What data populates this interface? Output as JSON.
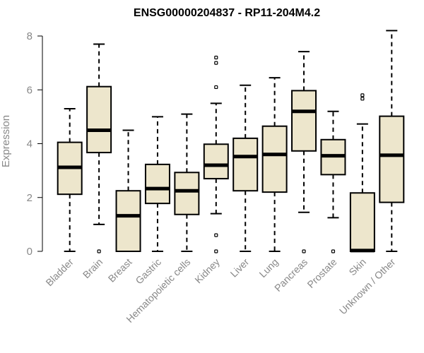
{
  "chart_data": {
    "type": "boxplot",
    "title": "ENSG00000204837 - RP11-204M4.2",
    "xlabel": "",
    "ylabel": "Expression",
    "ylim": [
      0,
      8.2
    ],
    "yticks": [
      0,
      2,
      4,
      6,
      8
    ],
    "grid": false,
    "colors": {
      "box_fill": "#ede6cc",
      "stroke": "#000000",
      "axis_text": "#888888"
    },
    "categories": [
      "Bladder",
      "Brain",
      "Breast",
      "Gastric",
      "Hematopoietic cells",
      "Kidney",
      "Liver",
      "Lung",
      "Pancreas",
      "Prostate",
      "Skin",
      "Unknown / Other"
    ],
    "boxes": [
      {
        "category": "Bladder",
        "whisker_low": 0,
        "q1": 2.12,
        "median": 3.12,
        "q3": 4.05,
        "whisker_high": 5.3,
        "outliers": []
      },
      {
        "category": "Brain",
        "whisker_low": 1.0,
        "q1": 3.67,
        "median": 4.5,
        "q3": 6.12,
        "whisker_high": 7.7,
        "outliers": [
          0
        ]
      },
      {
        "category": "Breast",
        "whisker_low": 0,
        "q1": 0,
        "median": 1.32,
        "q3": 2.25,
        "whisker_high": 4.5,
        "outliers": []
      },
      {
        "category": "Gastric",
        "whisker_low": 0,
        "q1": 1.78,
        "median": 2.33,
        "q3": 3.23,
        "whisker_high": 5.0,
        "outliers": []
      },
      {
        "category": "Hematopoietic cells",
        "whisker_low": 0,
        "q1": 1.37,
        "median": 2.25,
        "q3": 2.93,
        "whisker_high": 5.1,
        "outliers": []
      },
      {
        "category": "Kidney",
        "whisker_low": 1.4,
        "q1": 2.7,
        "median": 3.2,
        "q3": 3.98,
        "whisker_high": 5.5,
        "outliers": [
          0,
          0.6,
          6.1,
          7.0,
          7.2
        ]
      },
      {
        "category": "Liver",
        "whisker_low": 0,
        "q1": 2.25,
        "median": 3.52,
        "q3": 4.2,
        "whisker_high": 6.17,
        "outliers": []
      },
      {
        "category": "Lung",
        "whisker_low": 0,
        "q1": 2.2,
        "median": 3.6,
        "q3": 4.65,
        "whisker_high": 6.45,
        "outliers": []
      },
      {
        "category": "Pancreas",
        "whisker_low": 1.45,
        "q1": 3.73,
        "median": 5.2,
        "q3": 5.97,
        "whisker_high": 7.42,
        "outliers": [
          0
        ]
      },
      {
        "category": "Prostate",
        "whisker_low": 1.25,
        "q1": 2.85,
        "median": 3.55,
        "q3": 4.15,
        "whisker_high": 5.2,
        "outliers": [
          0
        ]
      },
      {
        "category": "Skin",
        "whisker_low": 0,
        "q1": 0,
        "median": 0.03,
        "q3": 2.17,
        "whisker_high": 4.73,
        "outliers": [
          5.67,
          5.8
        ]
      },
      {
        "category": "Unknown / Other",
        "whisker_low": 0,
        "q1": 1.82,
        "median": 3.57,
        "q3": 5.02,
        "whisker_high": 8.2,
        "outliers": []
      }
    ]
  }
}
